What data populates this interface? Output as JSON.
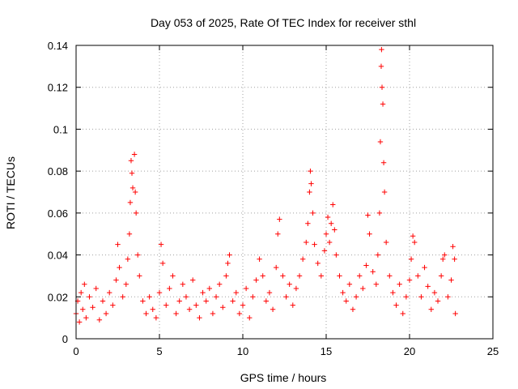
{
  "chart_data": {
    "type": "scatter",
    "title": "Day 053 of 2025, Rate Of TEC Index for receiver sthl",
    "xlabel": "GPS time / hours",
    "ylabel": "ROTI / TECUs",
    "xlim": [
      0,
      25
    ],
    "ylim": [
      0,
      0.14
    ],
    "xticks": [
      0,
      5,
      10,
      15,
      20,
      25
    ],
    "yticks": [
      0,
      0.02,
      0.04,
      0.06,
      0.08,
      0.1,
      0.12,
      0.14
    ],
    "xtick_labels": [
      "0",
      "5",
      "10",
      "15",
      "20",
      "25"
    ],
    "ytick_labels": [
      "0",
      "0.02",
      "0.04",
      "0.06",
      "0.08",
      "0.1",
      "0.12",
      "0.14"
    ],
    "grid": true,
    "marker": "+",
    "marker_color": "#ff0000",
    "series": [
      {
        "name": "sthl",
        "points": [
          [
            0.0,
            0.012
          ],
          [
            0.1,
            0.018
          ],
          [
            0.2,
            0.008
          ],
          [
            0.3,
            0.022
          ],
          [
            0.4,
            0.014
          ],
          [
            0.5,
            0.026
          ],
          [
            0.6,
            0.01
          ],
          [
            0.8,
            0.02
          ],
          [
            1.0,
            0.015
          ],
          [
            1.2,
            0.024
          ],
          [
            1.4,
            0.009
          ],
          [
            1.6,
            0.018
          ],
          [
            1.8,
            0.012
          ],
          [
            2.0,
            0.022
          ],
          [
            2.2,
            0.016
          ],
          [
            2.4,
            0.028
          ],
          [
            2.5,
            0.045
          ],
          [
            2.6,
            0.034
          ],
          [
            2.8,
            0.02
          ],
          [
            3.0,
            0.026
          ],
          [
            3.1,
            0.038
          ],
          [
            3.2,
            0.05
          ],
          [
            3.25,
            0.065
          ],
          [
            3.3,
            0.085
          ],
          [
            3.35,
            0.079
          ],
          [
            3.4,
            0.072
          ],
          [
            3.5,
            0.088
          ],
          [
            3.55,
            0.07
          ],
          [
            3.6,
            0.06
          ],
          [
            3.7,
            0.04
          ],
          [
            3.8,
            0.03
          ],
          [
            4.0,
            0.018
          ],
          [
            4.2,
            0.012
          ],
          [
            4.4,
            0.02
          ],
          [
            4.6,
            0.014
          ],
          [
            4.8,
            0.01
          ],
          [
            5.0,
            0.022
          ],
          [
            5.1,
            0.045
          ],
          [
            5.2,
            0.036
          ],
          [
            5.4,
            0.016
          ],
          [
            5.6,
            0.024
          ],
          [
            5.8,
            0.03
          ],
          [
            6.0,
            0.012
          ],
          [
            6.2,
            0.018
          ],
          [
            6.4,
            0.026
          ],
          [
            6.6,
            0.02
          ],
          [
            6.8,
            0.014
          ],
          [
            7.0,
            0.028
          ],
          [
            7.2,
            0.016
          ],
          [
            7.4,
            0.01
          ],
          [
            7.6,
            0.022
          ],
          [
            7.8,
            0.018
          ],
          [
            8.0,
            0.024
          ],
          [
            8.2,
            0.012
          ],
          [
            8.4,
            0.02
          ],
          [
            8.6,
            0.026
          ],
          [
            8.8,
            0.015
          ],
          [
            9.0,
            0.03
          ],
          [
            9.1,
            0.036
          ],
          [
            9.2,
            0.04
          ],
          [
            9.4,
            0.018
          ],
          [
            9.6,
            0.022
          ],
          [
            9.8,
            0.012
          ],
          [
            10.0,
            0.016
          ],
          [
            10.2,
            0.024
          ],
          [
            10.4,
            0.01
          ],
          [
            10.6,
            0.02
          ],
          [
            10.8,
            0.028
          ],
          [
            11.0,
            0.038
          ],
          [
            11.2,
            0.03
          ],
          [
            11.4,
            0.018
          ],
          [
            11.6,
            0.022
          ],
          [
            11.8,
            0.014
          ],
          [
            12.0,
            0.034
          ],
          [
            12.1,
            0.05
          ],
          [
            12.2,
            0.057
          ],
          [
            12.4,
            0.03
          ],
          [
            12.6,
            0.02
          ],
          [
            12.8,
            0.026
          ],
          [
            13.0,
            0.016
          ],
          [
            13.2,
            0.024
          ],
          [
            13.4,
            0.03
          ],
          [
            13.6,
            0.038
          ],
          [
            13.8,
            0.046
          ],
          [
            13.9,
            0.055
          ],
          [
            14.0,
            0.07
          ],
          [
            14.05,
            0.08
          ],
          [
            14.1,
            0.074
          ],
          [
            14.2,
            0.06
          ],
          [
            14.3,
            0.045
          ],
          [
            14.5,
            0.036
          ],
          [
            14.7,
            0.03
          ],
          [
            14.9,
            0.042
          ],
          [
            15.0,
            0.05
          ],
          [
            15.1,
            0.058
          ],
          [
            15.2,
            0.046
          ],
          [
            15.3,
            0.055
          ],
          [
            15.4,
            0.064
          ],
          [
            15.5,
            0.052
          ],
          [
            15.6,
            0.04
          ],
          [
            15.8,
            0.03
          ],
          [
            16.0,
            0.022
          ],
          [
            16.2,
            0.018
          ],
          [
            16.4,
            0.026
          ],
          [
            16.6,
            0.014
          ],
          [
            16.8,
            0.02
          ],
          [
            17.0,
            0.03
          ],
          [
            17.2,
            0.024
          ],
          [
            17.4,
            0.035
          ],
          [
            17.5,
            0.059
          ],
          [
            17.6,
            0.05
          ],
          [
            17.8,
            0.032
          ],
          [
            18.0,
            0.026
          ],
          [
            18.1,
            0.04
          ],
          [
            18.2,
            0.06
          ],
          [
            18.25,
            0.094
          ],
          [
            18.3,
            0.13
          ],
          [
            18.32,
            0.138
          ],
          [
            18.35,
            0.12
          ],
          [
            18.4,
            0.112
          ],
          [
            18.45,
            0.084
          ],
          [
            18.5,
            0.07
          ],
          [
            18.6,
            0.046
          ],
          [
            18.8,
            0.03
          ],
          [
            19.0,
            0.022
          ],
          [
            19.2,
            0.016
          ],
          [
            19.4,
            0.026
          ],
          [
            19.6,
            0.012
          ],
          [
            19.8,
            0.02
          ],
          [
            20.0,
            0.028
          ],
          [
            20.1,
            0.038
          ],
          [
            20.2,
            0.049
          ],
          [
            20.3,
            0.046
          ],
          [
            20.5,
            0.03
          ],
          [
            20.7,
            0.02
          ],
          [
            20.9,
            0.034
          ],
          [
            21.1,
            0.025
          ],
          [
            21.3,
            0.014
          ],
          [
            21.5,
            0.022
          ],
          [
            21.7,
            0.018
          ],
          [
            21.9,
            0.03
          ],
          [
            22.0,
            0.038
          ],
          [
            22.1,
            0.04
          ],
          [
            22.3,
            0.02
          ],
          [
            22.5,
            0.028
          ],
          [
            22.6,
            0.044
          ],
          [
            22.7,
            0.038
          ],
          [
            22.75,
            0.012
          ]
        ]
      }
    ]
  }
}
